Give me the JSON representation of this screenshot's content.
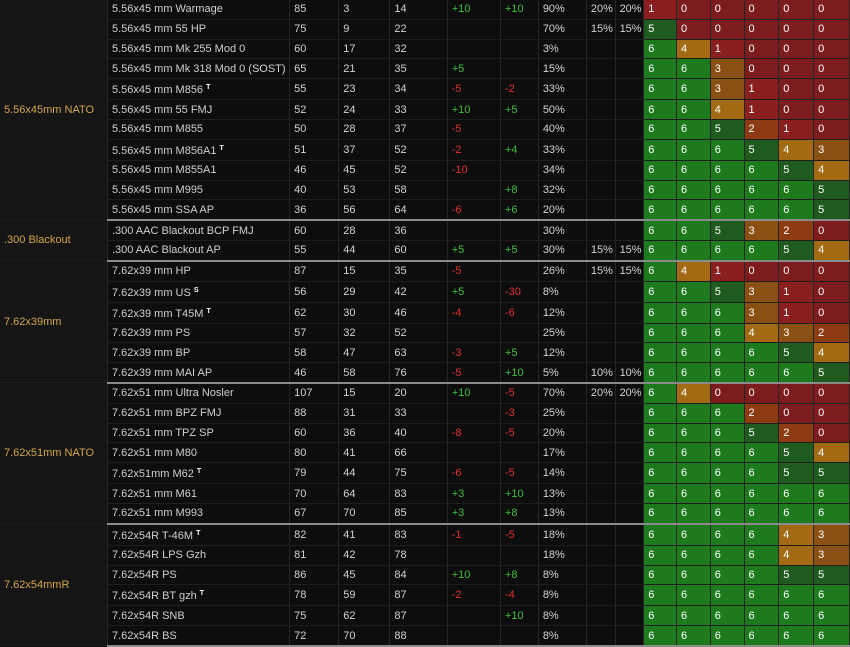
{
  "groups": [
    {
      "caliber": "5.56x45mm NATO",
      "rows": [
        {
          "name": "5.56x45 mm Warmage",
          "tag": "",
          "dmg": "85",
          "pen": "3",
          "armor": "14",
          "acc": "+10",
          "recoil": "+10",
          "frag": "90%",
          "ric": "20%",
          "ric2": "20%",
          "tiers": [
            1,
            0,
            0,
            0,
            0,
            0
          ]
        },
        {
          "name": "5.56x45 mm 55 HP",
          "tag": "",
          "dmg": "75",
          "pen": "9",
          "armor": "22",
          "acc": "",
          "recoil": "",
          "frag": "70%",
          "ric": "15%",
          "ric2": "15%",
          "tiers": [
            5,
            0,
            0,
            0,
            0,
            0
          ]
        },
        {
          "name": "5.56x45 mm Mk 255 Mod 0",
          "tag": "",
          "dmg": "60",
          "pen": "17",
          "armor": "32",
          "acc": "",
          "recoil": "",
          "frag": "3%",
          "ric": "",
          "ric2": "",
          "tiers": [
            6,
            4,
            1,
            0,
            0,
            0
          ]
        },
        {
          "name": "5.56x45 mm Mk 318 Mod 0 (SOST)",
          "tag": "",
          "dmg": "65",
          "pen": "21",
          "armor": "35",
          "acc": "+5",
          "recoil": "",
          "frag": "15%",
          "ric": "",
          "ric2": "",
          "tiers": [
            6,
            6,
            3,
            0,
            0,
            0
          ]
        },
        {
          "name": "5.56x45 mm M856",
          "tag": "T",
          "dmg": "55",
          "pen": "23",
          "armor": "34",
          "acc": "-5",
          "recoil": "-2",
          "frag": "33%",
          "ric": "",
          "ric2": "",
          "tiers": [
            6,
            6,
            3,
            1,
            0,
            0
          ]
        },
        {
          "name": "5.56x45 mm 55 FMJ",
          "tag": "",
          "dmg": "52",
          "pen": "24",
          "armor": "33",
          "acc": "+10",
          "recoil": "+5",
          "frag": "50%",
          "ric": "",
          "ric2": "",
          "tiers": [
            6,
            6,
            4,
            1,
            0,
            0
          ]
        },
        {
          "name": "5.56x45 mm M855",
          "tag": "",
          "dmg": "50",
          "pen": "28",
          "armor": "37",
          "acc": "-5",
          "recoil": "",
          "frag": "40%",
          "ric": "",
          "ric2": "",
          "tiers": [
            6,
            6,
            5,
            2,
            1,
            0
          ]
        },
        {
          "name": "5.56x45 mm M856A1",
          "tag": "T",
          "dmg": "51",
          "pen": "37",
          "armor": "52",
          "acc": "-2",
          "recoil": "+4",
          "frag": "33%",
          "ric": "",
          "ric2": "",
          "tiers": [
            6,
            6,
            6,
            5,
            4,
            3
          ]
        },
        {
          "name": "5.56x45 mm M855A1",
          "tag": "",
          "dmg": "46",
          "pen": "45",
          "armor": "52",
          "acc": "-10",
          "recoil": "",
          "frag": "34%",
          "ric": "",
          "ric2": "",
          "tiers": [
            6,
            6,
            6,
            6,
            5,
            4
          ]
        },
        {
          "name": "5.56x45 mm M995",
          "tag": "",
          "dmg": "40",
          "pen": "53",
          "armor": "58",
          "acc": "",
          "recoil": "+8",
          "frag": "32%",
          "ric": "",
          "ric2": "",
          "tiers": [
            6,
            6,
            6,
            6,
            6,
            5
          ]
        },
        {
          "name": "5.56x45 mm SSA AP",
          "tag": "",
          "dmg": "36",
          "pen": "56",
          "armor": "64",
          "acc": "-6",
          "recoil": "+6",
          "frag": "20%",
          "ric": "",
          "ric2": "",
          "tiers": [
            6,
            6,
            6,
            6,
            6,
            5
          ]
        }
      ]
    },
    {
      "caliber": ".300 Blackout",
      "rows": [
        {
          "name": ".300 AAC Blackout BCP FMJ",
          "tag": "",
          "dmg": "60",
          "pen": "28",
          "armor": "36",
          "acc": "",
          "recoil": "",
          "frag": "30%",
          "ric": "",
          "ric2": "",
          "tiers": [
            6,
            6,
            5,
            3,
            2,
            0
          ]
        },
        {
          "name": ".300 AAC Blackout AP",
          "tag": "",
          "dmg": "55",
          "pen": "44",
          "armor": "60",
          "acc": "+5",
          "recoil": "+5",
          "frag": "30%",
          "ric": "15%",
          "ric2": "15%",
          "tiers": [
            6,
            6,
            6,
            6,
            5,
            4
          ]
        }
      ]
    },
    {
      "caliber": "7.62x39mm",
      "rows": [
        {
          "name": "7.62x39 mm HP",
          "tag": "",
          "dmg": "87",
          "pen": "15",
          "armor": "35",
          "acc": "-5",
          "recoil": "",
          "frag": "26%",
          "ric": "15%",
          "ric2": "15%",
          "tiers": [
            6,
            4,
            1,
            0,
            0,
            0
          ]
        },
        {
          "name": "7.62x39 mm US",
          "tag": "S",
          "dmg": "56",
          "pen": "29",
          "armor": "42",
          "acc": "+5",
          "recoil": "-30",
          "frag": "8%",
          "ric": "",
          "ric2": "",
          "tiers": [
            6,
            6,
            5,
            3,
            1,
            0
          ]
        },
        {
          "name": "7.62x39 mm T45M",
          "tag": "T",
          "dmg": "62",
          "pen": "30",
          "armor": "46",
          "acc": "-4",
          "recoil": "-6",
          "frag": "12%",
          "ric": "",
          "ric2": "",
          "tiers": [
            6,
            6,
            6,
            3,
            1,
            0
          ]
        },
        {
          "name": "7.62x39 mm PS",
          "tag": "",
          "dmg": "57",
          "pen": "32",
          "armor": "52",
          "acc": "",
          "recoil": "",
          "frag": "25%",
          "ric": "",
          "ric2": "",
          "tiers": [
            6,
            6,
            6,
            4,
            3,
            2
          ]
        },
        {
          "name": "7.62x39 mm BP",
          "tag": "",
          "dmg": "58",
          "pen": "47",
          "armor": "63",
          "acc": "-3",
          "recoil": "+5",
          "frag": "12%",
          "ric": "",
          "ric2": "",
          "tiers": [
            6,
            6,
            6,
            6,
            5,
            4
          ]
        },
        {
          "name": "7.62x39 mm MAI AP",
          "tag": "",
          "dmg": "46",
          "pen": "58",
          "armor": "76",
          "acc": "-5",
          "recoil": "+10",
          "frag": "5%",
          "ric": "10%",
          "ric2": "10%",
          "tiers": [
            6,
            6,
            6,
            6,
            6,
            5
          ]
        }
      ]
    },
    {
      "caliber": "7.62x51mm NATO",
      "rows": [
        {
          "name": "7.62x51 mm Ultra Nosler",
          "tag": "",
          "dmg": "107",
          "pen": "15",
          "armor": "20",
          "acc": "+10",
          "recoil": "-5",
          "frag": "70%",
          "ric": "20%",
          "ric2": "20%",
          "tiers": [
            6,
            4,
            0,
            0,
            0,
            0
          ]
        },
        {
          "name": "7.62x51 mm BPZ FMJ",
          "tag": "",
          "dmg": "88",
          "pen": "31",
          "armor": "33",
          "acc": "",
          "recoil": "-3",
          "frag": "25%",
          "ric": "",
          "ric2": "",
          "tiers": [
            6,
            6,
            6,
            2,
            0,
            0
          ]
        },
        {
          "name": "7.62x51 mm TPZ SP",
          "tag": "",
          "dmg": "60",
          "pen": "36",
          "armor": "40",
          "acc": "-8",
          "recoil": "-5",
          "frag": "20%",
          "ric": "",
          "ric2": "",
          "tiers": [
            6,
            6,
            6,
            5,
            2,
            0
          ]
        },
        {
          "name": "7.62x51 mm M80",
          "tag": "",
          "dmg": "80",
          "pen": "41",
          "armor": "66",
          "acc": "",
          "recoil": "",
          "frag": "17%",
          "ric": "",
          "ric2": "",
          "tiers": [
            6,
            6,
            6,
            6,
            5,
            4
          ]
        },
        {
          "name": "7.62x51mm M62",
          "tag": "T",
          "dmg": "79",
          "pen": "44",
          "armor": "75",
          "acc": "-6",
          "recoil": "-5",
          "frag": "14%",
          "ric": "",
          "ric2": "",
          "tiers": [
            6,
            6,
            6,
            6,
            5,
            5
          ]
        },
        {
          "name": "7.62x51 mm M61",
          "tag": "",
          "dmg": "70",
          "pen": "64",
          "armor": "83",
          "acc": "+3",
          "recoil": "+10",
          "frag": "13%",
          "ric": "",
          "ric2": "",
          "tiers": [
            6,
            6,
            6,
            6,
            6,
            6
          ]
        },
        {
          "name": "7.62x51 mm M993",
          "tag": "",
          "dmg": "67",
          "pen": "70",
          "armor": "85",
          "acc": "+3",
          "recoil": "+8",
          "frag": "13%",
          "ric": "",
          "ric2": "",
          "tiers": [
            6,
            6,
            6,
            6,
            6,
            6
          ]
        }
      ]
    },
    {
      "caliber": "7.62x54mmR",
      "rows": [
        {
          "name": "7.62x54R T-46M",
          "tag": "T",
          "dmg": "82",
          "pen": "41",
          "armor": "83",
          "acc": "-1",
          "recoil": "-5",
          "frag": "18%",
          "ric": "",
          "ric2": "",
          "tiers": [
            6,
            6,
            6,
            6,
            4,
            3
          ]
        },
        {
          "name": "7.62x54R LPS Gzh",
          "tag": "",
          "dmg": "81",
          "pen": "42",
          "armor": "78",
          "acc": "",
          "recoil": "",
          "frag": "18%",
          "ric": "",
          "ric2": "",
          "tiers": [
            6,
            6,
            6,
            6,
            4,
            3
          ]
        },
        {
          "name": "7.62x54R PS",
          "tag": "",
          "dmg": "86",
          "pen": "45",
          "armor": "84",
          "acc": "+10",
          "recoil": "+8",
          "frag": "8%",
          "ric": "",
          "ric2": "",
          "tiers": [
            6,
            6,
            6,
            6,
            5,
            5
          ]
        },
        {
          "name": "7.62x54R BT gzh",
          "tag": "T",
          "dmg": "78",
          "pen": "59",
          "armor": "87",
          "acc": "-2",
          "recoil": "-4",
          "frag": "8%",
          "ric": "",
          "ric2": "",
          "tiers": [
            6,
            6,
            6,
            6,
            6,
            6
          ]
        },
        {
          "name": "7.62x54R SNB",
          "tag": "",
          "dmg": "75",
          "pen": "62",
          "armor": "87",
          "acc": "",
          "recoil": "+10",
          "frag": "8%",
          "ric": "",
          "ric2": "",
          "tiers": [
            6,
            6,
            6,
            6,
            6,
            6
          ]
        },
        {
          "name": "7.62x54R BS",
          "tag": "",
          "dmg": "72",
          "pen": "70",
          "armor": "88",
          "acc": "",
          "recoil": "",
          "frag": "8%",
          "ric": "",
          "ric2": "",
          "tiers": [
            6,
            6,
            6,
            6,
            6,
            6
          ]
        }
      ]
    }
  ],
  "tier_colors": {
    "0": "#7c1c1c",
    "1": "#8a1f1f",
    "2": "#8c3b12",
    "3": "#8a4f12",
    "4": "#a36a14",
    "5": "#1f5a1f",
    "6": "#1d7a1d"
  }
}
